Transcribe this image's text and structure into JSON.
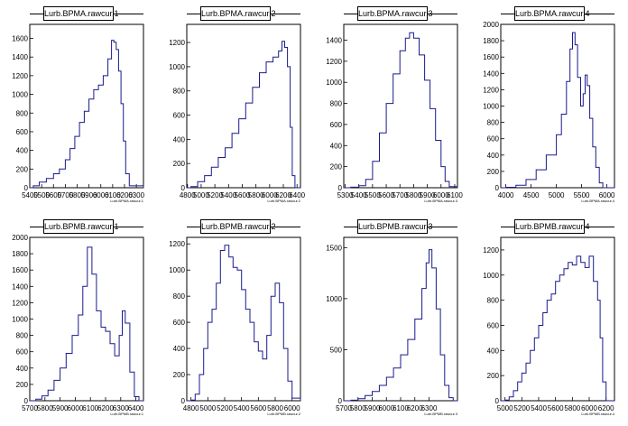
{
  "colors": {
    "histogram": "#1a1a8c",
    "axis": "#000000",
    "background": "#ffffff"
  },
  "chart_data": [
    {
      "type": "histogram",
      "title": "Lurb.BPMA.rawcur.1",
      "xlabel": "Lurb.BPMA.rawcur.1",
      "xlim": [
        5400,
        6360
      ],
      "ylim": [
        0,
        1750
      ],
      "x_ticks": [
        5400,
        5500,
        5600,
        5700,
        5800,
        5900,
        6000,
        6100,
        6200,
        6300
      ],
      "x_tick_labels": [
        "5400",
        "5500",
        "5600",
        "5700",
        "5800",
        "5900",
        "6000",
        "6100",
        "6200",
        "6300"
      ],
      "y_ticks": [
        0,
        200,
        400,
        600,
        800,
        1000,
        1200,
        1400,
        1600
      ],
      "points": [
        [
          5400,
          0
        ],
        [
          5430,
          20
        ],
        [
          5480,
          60
        ],
        [
          5540,
          100
        ],
        [
          5600,
          150
        ],
        [
          5650,
          200
        ],
        [
          5700,
          300
        ],
        [
          5740,
          420
        ],
        [
          5780,
          550
        ],
        [
          5820,
          700
        ],
        [
          5860,
          820
        ],
        [
          5900,
          950
        ],
        [
          5940,
          1050
        ],
        [
          5980,
          1100
        ],
        [
          6020,
          1200
        ],
        [
          6060,
          1380
        ],
        [
          6090,
          1580
        ],
        [
          6110,
          1560
        ],
        [
          6130,
          1480
        ],
        [
          6150,
          1250
        ],
        [
          6170,
          900
        ],
        [
          6190,
          500
        ],
        [
          6210,
          150
        ],
        [
          6240,
          20
        ],
        [
          6360,
          0
        ]
      ]
    },
    {
      "type": "histogram",
      "title": "Lurb.BPMA.rawcur.2",
      "xlabel": "Lurb.BPMA.rawcur.2",
      "xlim": [
        4790,
        6450
      ],
      "ylim": [
        0,
        1350
      ],
      "x_ticks": [
        4800,
        5000,
        5200,
        5400,
        5600,
        5800,
        6000,
        6200,
        6400
      ],
      "x_tick_labels": [
        "4800",
        "5000",
        "5200",
        "5400",
        "5600",
        "5800",
        "6000",
        "6200",
        "6400"
      ],
      "y_ticks": [
        0,
        200,
        400,
        600,
        800,
        1000,
        1200
      ],
      "points": [
        [
          4790,
          0
        ],
        [
          4850,
          10
        ],
        [
          4950,
          50
        ],
        [
          5050,
          100
        ],
        [
          5150,
          170
        ],
        [
          5250,
          250
        ],
        [
          5350,
          330
        ],
        [
          5450,
          450
        ],
        [
          5550,
          570
        ],
        [
          5650,
          700
        ],
        [
          5750,
          830
        ],
        [
          5850,
          950
        ],
        [
          5950,
          1040
        ],
        [
          6050,
          1080
        ],
        [
          6130,
          1130
        ],
        [
          6180,
          1210
        ],
        [
          6220,
          1160
        ],
        [
          6260,
          1000
        ],
        [
          6300,
          500
        ],
        [
          6330,
          100
        ],
        [
          6370,
          0
        ],
        [
          6450,
          0
        ]
      ]
    },
    {
      "type": "histogram",
      "title": "Lurb.BPMA.rawcur.3",
      "xlabel": "Lurb.BPMA.rawcur.3",
      "xlim": [
        5290,
        6120
      ],
      "ylim": [
        0,
        1550
      ],
      "x_ticks": [
        5300,
        5400,
        5500,
        5600,
        5700,
        5800,
        5900,
        6000,
        6100
      ],
      "x_tick_labels": [
        "5300",
        "5400",
        "5500",
        "5600",
        "5700",
        "5800",
        "5900",
        "6000",
        "6100"
      ],
      "y_ticks": [
        0,
        200,
        400,
        600,
        800,
        1000,
        1200,
        1400
      ],
      "points": [
        [
          5290,
          0
        ],
        [
          5340,
          5
        ],
        [
          5400,
          20
        ],
        [
          5450,
          80
        ],
        [
          5500,
          250
        ],
        [
          5550,
          520
        ],
        [
          5600,
          800
        ],
        [
          5650,
          1080
        ],
        [
          5700,
          1300
        ],
        [
          5740,
          1420
        ],
        [
          5770,
          1470
        ],
        [
          5800,
          1420
        ],
        [
          5840,
          1260
        ],
        [
          5880,
          1020
        ],
        [
          5920,
          750
        ],
        [
          5960,
          450
        ],
        [
          6000,
          200
        ],
        [
          6030,
          60
        ],
        [
          6060,
          10
        ],
        [
          6120,
          0
        ]
      ]
    },
    {
      "type": "histogram",
      "title": "Lurb.BPMA.rawcur.4",
      "xlabel": "Lurb.BPMA.rawcur.4",
      "xlim": [
        3900,
        6150
      ],
      "ylim": [
        0,
        2000
      ],
      "x_ticks": [
        4000,
        4500,
        5000,
        5500,
        6000
      ],
      "x_tick_labels": [
        "4000",
        "4500",
        "5000",
        "5500",
        "6000"
      ],
      "y_ticks": [
        0,
        200,
        400,
        600,
        800,
        1000,
        1200,
        1400,
        1600,
        1800,
        2000
      ],
      "points": [
        [
          3900,
          0
        ],
        [
          4000,
          5
        ],
        [
          4200,
          30
        ],
        [
          4400,
          100
        ],
        [
          4600,
          220
        ],
        [
          4800,
          400
        ],
        [
          5000,
          650
        ],
        [
          5100,
          900
        ],
        [
          5200,
          1300
        ],
        [
          5270,
          1700
        ],
        [
          5320,
          1900
        ],
        [
          5370,
          1750
        ],
        [
          5420,
          1350
        ],
        [
          5480,
          1000
        ],
        [
          5530,
          1150
        ],
        [
          5570,
          1380
        ],
        [
          5610,
          1250
        ],
        [
          5660,
          850
        ],
        [
          5720,
          500
        ],
        [
          5780,
          250
        ],
        [
          5850,
          60
        ],
        [
          5920,
          0
        ],
        [
          6150,
          0
        ]
      ]
    },
    {
      "type": "histogram",
      "title": "Lurb.BPMB.rawcur.1",
      "xlabel": "Lurb.BPMB.rawcur.1",
      "xlim": [
        5700,
        6450
      ],
      "ylim": [
        0,
        2000
      ],
      "x_ticks": [
        5700,
        5800,
        5900,
        6000,
        6100,
        6200,
        6300,
        6400
      ],
      "x_tick_labels": [
        "5700",
        "5800",
        "5900",
        "6000",
        "6100",
        "6200",
        "6300",
        "6400"
      ],
      "y_ticks": [
        0,
        200,
        400,
        600,
        800,
        1000,
        1200,
        1400,
        1600,
        1800,
        2000
      ],
      "points": [
        [
          5700,
          0
        ],
        [
          5740,
          20
        ],
        [
          5780,
          60
        ],
        [
          5820,
          130
        ],
        [
          5860,
          250
        ],
        [
          5900,
          400
        ],
        [
          5940,
          580
        ],
        [
          5980,
          800
        ],
        [
          6020,
          1050
        ],
        [
          6050,
          1400
        ],
        [
          6080,
          1880
        ],
        [
          6110,
          1550
        ],
        [
          6140,
          1100
        ],
        [
          6170,
          900
        ],
        [
          6200,
          850
        ],
        [
          6230,
          700
        ],
        [
          6260,
          550
        ],
        [
          6290,
          800
        ],
        [
          6310,
          1100
        ],
        [
          6330,
          950
        ],
        [
          6360,
          350
        ],
        [
          6390,
          50
        ],
        [
          6420,
          0
        ],
        [
          6450,
          0
        ]
      ]
    },
    {
      "type": "histogram",
      "title": "Lurb.BPMB.rawcur.2",
      "xlabel": "Lurb.BPMB.rawcur.2",
      "xlim": [
        4750,
        6100
      ],
      "ylim": [
        0,
        1250
      ],
      "x_ticks": [
        4800,
        5000,
        5200,
        5400,
        5600,
        5800,
        6000
      ],
      "x_tick_labels": [
        "4800",
        "5000",
        "5200",
        "5400",
        "5600",
        "5800",
        "6000"
      ],
      "y_ticks": [
        0,
        200,
        400,
        600,
        800,
        1000,
        1200
      ],
      "points": [
        [
          4750,
          0
        ],
        [
          4800,
          5
        ],
        [
          4850,
          50
        ],
        [
          4900,
          200
        ],
        [
          4950,
          400
        ],
        [
          5000,
          600
        ],
        [
          5050,
          700
        ],
        [
          5100,
          900
        ],
        [
          5150,
          1150
        ],
        [
          5200,
          1190
        ],
        [
          5250,
          1100
        ],
        [
          5300,
          1020
        ],
        [
          5350,
          1000
        ],
        [
          5400,
          850
        ],
        [
          5450,
          700
        ],
        [
          5500,
          600
        ],
        [
          5550,
          450
        ],
        [
          5600,
          380
        ],
        [
          5650,
          320
        ],
        [
          5700,
          500
        ],
        [
          5750,
          800
        ],
        [
          5800,
          900
        ],
        [
          5850,
          750
        ],
        [
          5900,
          400
        ],
        [
          5950,
          150
        ],
        [
          6000,
          20
        ],
        [
          6100,
          0
        ]
      ]
    },
    {
      "type": "histogram",
      "title": "Lurb.BPMB.rawcur.3",
      "xlabel": "Lurb.BPMB.rawcur.3",
      "xlim": [
        5700,
        6500
      ],
      "ylim": [
        0,
        1600
      ],
      "x_ticks": [
        5700,
        5800,
        5900,
        6000,
        6100,
        6200,
        6300
      ],
      "x_tick_labels": [
        "5700",
        "5800",
        "5900",
        "6000",
        "6100",
        "6200",
        "6300"
      ],
      "y_ticks": [
        0,
        500,
        1000,
        1500
      ],
      "points": [
        [
          5700,
          0
        ],
        [
          5750,
          5
        ],
        [
          5800,
          20
        ],
        [
          5850,
          50
        ],
        [
          5900,
          90
        ],
        [
          5950,
          150
        ],
        [
          6000,
          230
        ],
        [
          6050,
          320
        ],
        [
          6100,
          450
        ],
        [
          6150,
          600
        ],
        [
          6200,
          800
        ],
        [
          6250,
          1100
        ],
        [
          6280,
          1350
        ],
        [
          6300,
          1480
        ],
        [
          6320,
          1300
        ],
        [
          6350,
          900
        ],
        [
          6380,
          450
        ],
        [
          6410,
          150
        ],
        [
          6440,
          30
        ],
        [
          6470,
          0
        ],
        [
          6500,
          0
        ]
      ]
    },
    {
      "type": "histogram",
      "title": "Lurb.BPMB.rawcur.4",
      "xlabel": "Lurb.BPMB.rawcur.4",
      "xlim": [
        4950,
        6300
      ],
      "ylim": [
        0,
        1300
      ],
      "x_ticks": [
        5000,
        5200,
        5400,
        5600,
        5800,
        6000,
        6200
      ],
      "x_tick_labels": [
        "5000",
        "5200",
        "5400",
        "5600",
        "5800",
        "6000",
        "6200"
      ],
      "y_ticks": [
        0,
        200,
        400,
        600,
        800,
        1000,
        1200
      ],
      "points": [
        [
          4950,
          0
        ],
        [
          5000,
          5
        ],
        [
          5050,
          30
        ],
        [
          5100,
          80
        ],
        [
          5150,
          150
        ],
        [
          5200,
          220
        ],
        [
          5250,
          300
        ],
        [
          5300,
          400
        ],
        [
          5350,
          500
        ],
        [
          5400,
          600
        ],
        [
          5450,
          700
        ],
        [
          5500,
          800
        ],
        [
          5550,
          850
        ],
        [
          5600,
          950
        ],
        [
          5650,
          1000
        ],
        [
          5700,
          1050
        ],
        [
          5750,
          1100
        ],
        [
          5800,
          1080
        ],
        [
          5850,
          1150
        ],
        [
          5900,
          1100
        ],
        [
          5950,
          1060
        ],
        [
          6000,
          1150
        ],
        [
          6050,
          950
        ],
        [
          6100,
          800
        ],
        [
          6130,
          500
        ],
        [
          6160,
          150
        ],
        [
          6200,
          0
        ],
        [
          6300,
          0
        ]
      ]
    }
  ]
}
